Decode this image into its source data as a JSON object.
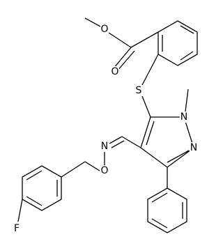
{
  "atoms": [
    {
      "label": "O"
    },
    {
      "label": "O"
    },
    {
      "label": "S"
    },
    {
      "label": "N"
    },
    {
      "label": "N"
    },
    {
      "label": "N"
    },
    {
      "label": "O"
    },
    {
      "label": "F"
    }
  ]
}
